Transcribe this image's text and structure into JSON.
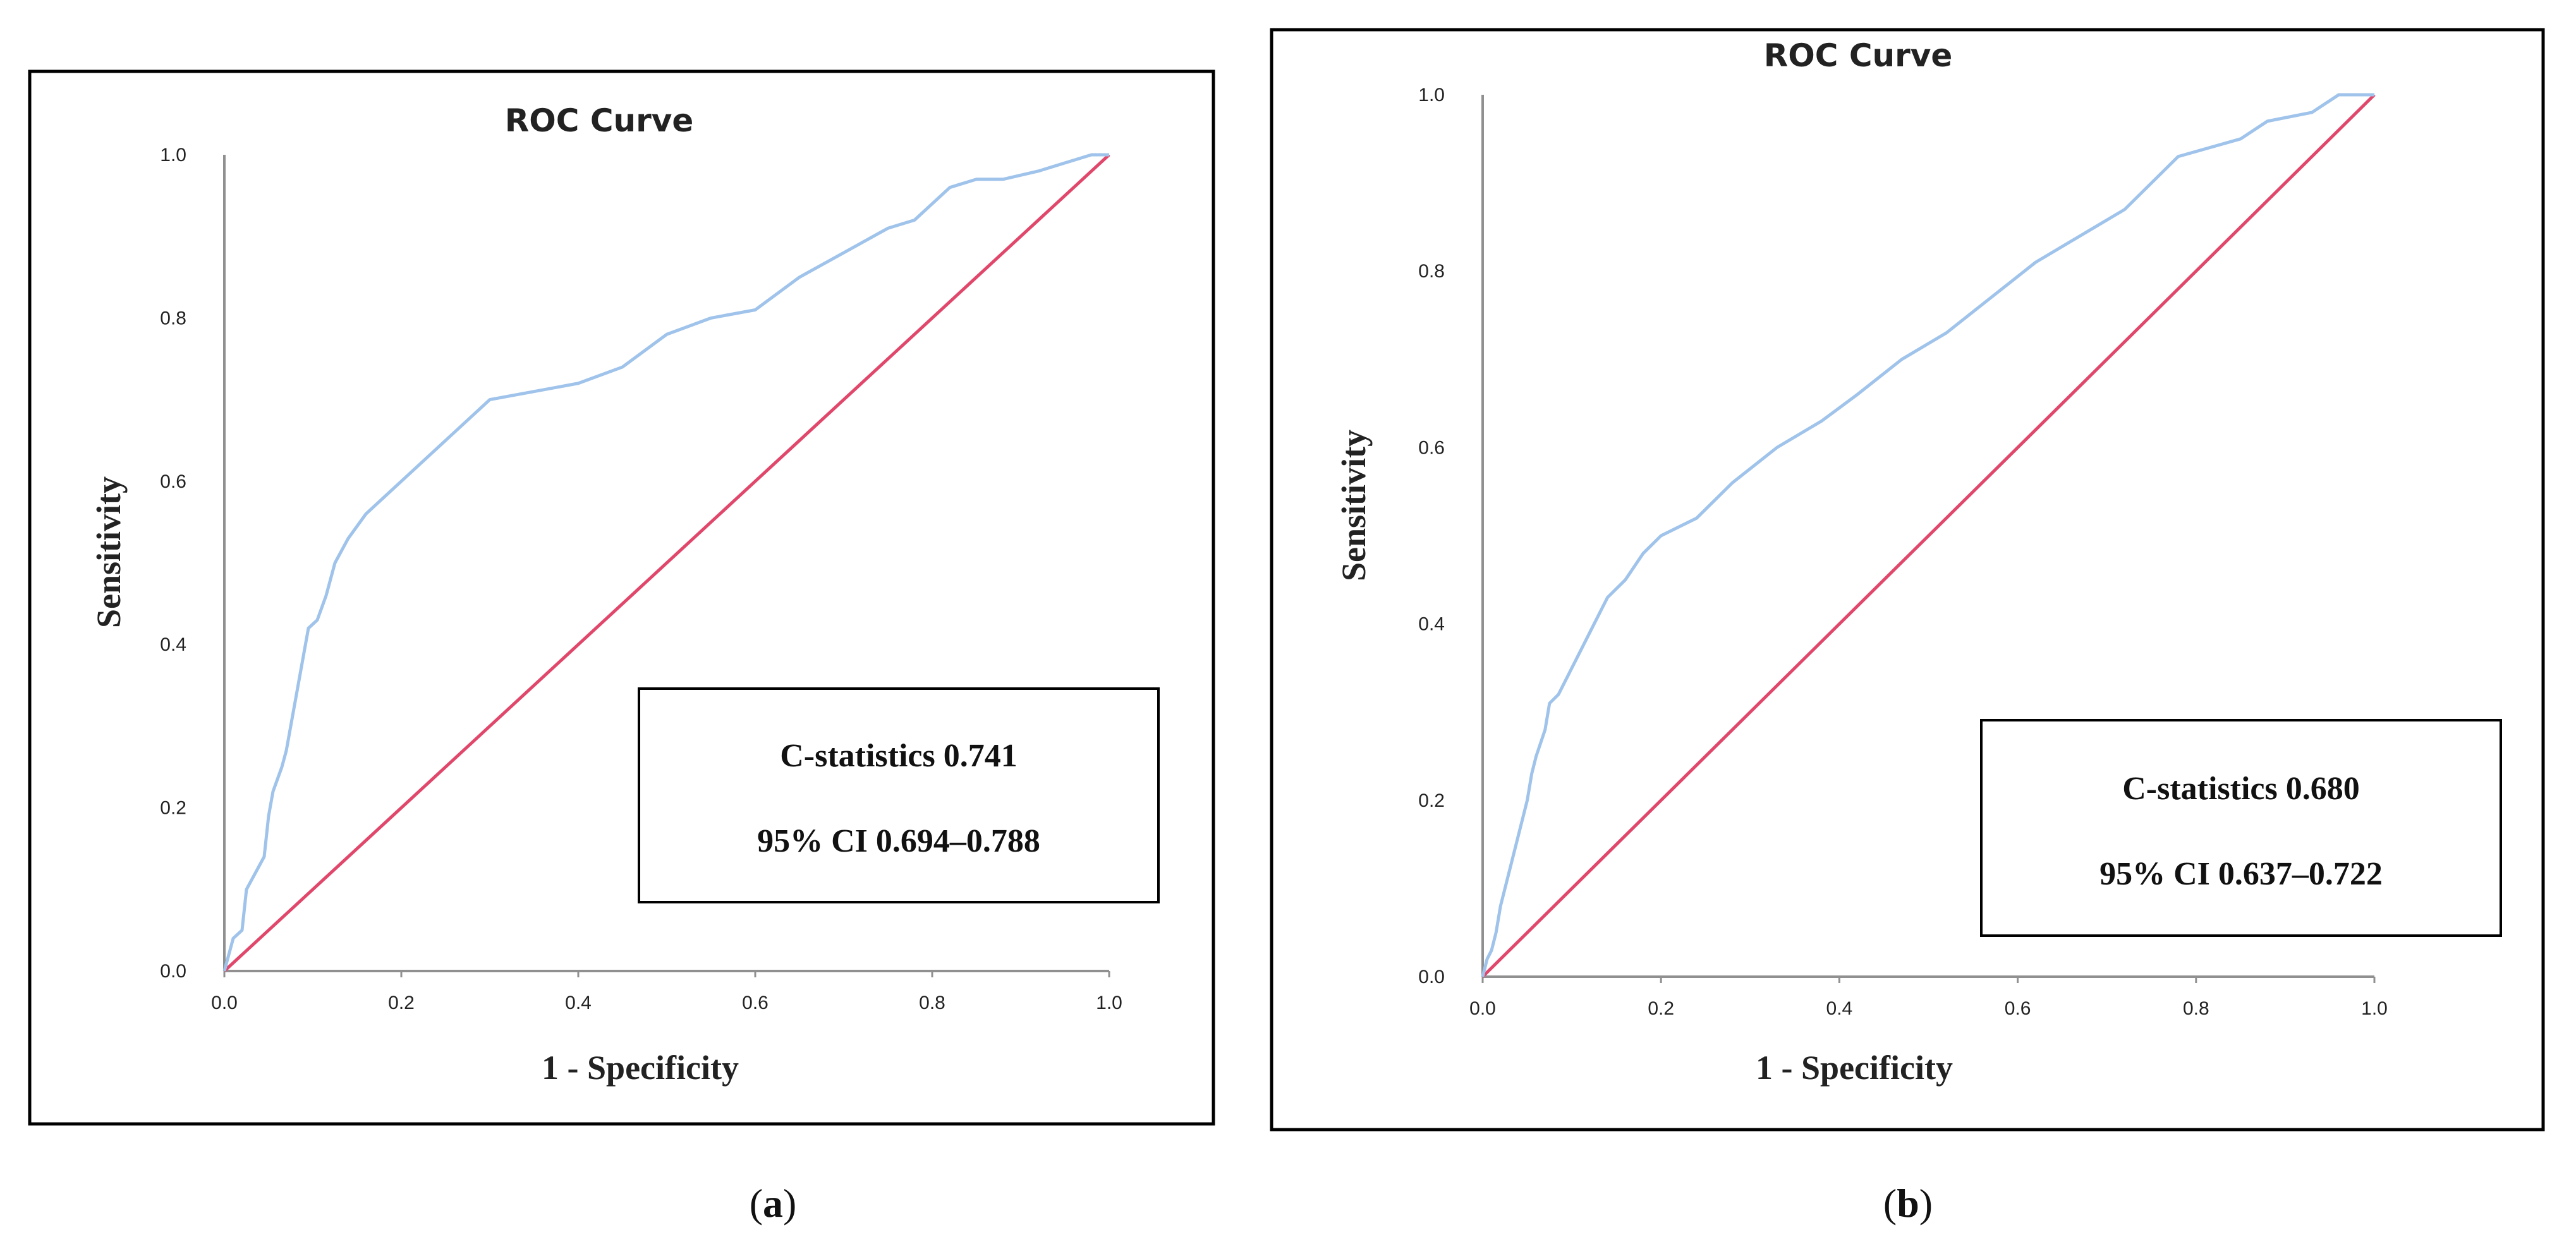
{
  "colors": {
    "curve": "#9fc3ea",
    "reference": "#e0476b",
    "axis": "#909090",
    "frame": "#000000"
  },
  "panels": [
    {
      "caption_open": "(",
      "caption_letter": "a",
      "caption_close": ")",
      "stats_line1": "C-statistics 0.741",
      "stats_line2": "95% CI 0.694–0.788"
    },
    {
      "caption_open": "(",
      "caption_letter": "b",
      "caption_close": ")",
      "stats_line1": "C-statistics 0.680",
      "stats_line2": "95% CI 0.637–0.722"
    }
  ],
  "chart_data": [
    {
      "type": "line",
      "title": "ROC Curve",
      "xlabel": "1 - Specificity",
      "ylabel": "Sensitivity",
      "xlim": [
        0,
        1
      ],
      "ylim": [
        0,
        1
      ],
      "x_ticks": [
        "0.0",
        "0.2",
        "0.4",
        "0.6",
        "0.8",
        "1.0"
      ],
      "y_ticks": [
        "0.0",
        "0.2",
        "0.4",
        "0.6",
        "0.8",
        "1.0"
      ],
      "grid": false,
      "series": [
        {
          "points": [
            [
              0,
              0
            ],
            [
              0.005,
              0.02
            ],
            [
              0.01,
              0.04
            ],
            [
              0.02,
              0.05
            ],
            [
              0.025,
              0.1
            ],
            [
              0.035,
              0.12
            ],
            [
              0.045,
              0.14
            ],
            [
              0.05,
              0.19
            ],
            [
              0.055,
              0.22
            ],
            [
              0.065,
              0.25
            ],
            [
              0.07,
              0.27
            ],
            [
              0.075,
              0.3
            ],
            [
              0.08,
              0.33
            ],
            [
              0.085,
              0.36
            ],
            [
              0.09,
              0.39
            ],
            [
              0.095,
              0.42
            ],
            [
              0.105,
              0.43
            ],
            [
              0.115,
              0.46
            ],
            [
              0.125,
              0.5
            ],
            [
              0.14,
              0.53
            ],
            [
              0.16,
              0.56
            ],
            [
              0.17,
              0.57
            ],
            [
              0.18,
              0.58
            ],
            [
              0.2,
              0.6
            ],
            [
              0.22,
              0.62
            ],
            [
              0.25,
              0.65
            ],
            [
              0.28,
              0.68
            ],
            [
              0.3,
              0.7
            ],
            [
              0.35,
              0.71
            ],
            [
              0.4,
              0.72
            ],
            [
              0.45,
              0.74
            ],
            [
              0.5,
              0.78
            ],
            [
              0.55,
              0.8
            ],
            [
              0.6,
              0.81
            ],
            [
              0.65,
              0.85
            ],
            [
              0.7,
              0.88
            ],
            [
              0.75,
              0.91
            ],
            [
              0.78,
              0.92
            ],
            [
              0.82,
              0.96
            ],
            [
              0.85,
              0.97
            ],
            [
              0.88,
              0.97
            ],
            [
              0.92,
              0.98
            ],
            [
              0.95,
              0.99
            ],
            [
              0.98,
              1.0
            ],
            [
              1.0,
              1.0
            ]
          ]
        },
        {
          "points": [
            [
              0,
              0
            ],
            [
              1,
              1
            ]
          ]
        }
      ]
    },
    {
      "type": "line",
      "title": "ROC Curve",
      "xlabel": "1 - Specificity",
      "ylabel": "Sensitivity",
      "xlim": [
        0,
        1
      ],
      "ylim": [
        0,
        1
      ],
      "x_ticks": [
        "0.0",
        "0.2",
        "0.4",
        "0.6",
        "0.8",
        "1.0"
      ],
      "y_ticks": [
        "0.0",
        "0.2",
        "0.4",
        "0.6",
        "0.8",
        "1.0"
      ],
      "grid": false,
      "series": [
        {
          "points": [
            [
              0,
              0
            ],
            [
              0.005,
              0.02
            ],
            [
              0.01,
              0.03
            ],
            [
              0.015,
              0.05
            ],
            [
              0.02,
              0.08
            ],
            [
              0.025,
              0.1
            ],
            [
              0.03,
              0.12
            ],
            [
              0.035,
              0.14
            ],
            [
              0.04,
              0.16
            ],
            [
              0.045,
              0.18
            ],
            [
              0.05,
              0.2
            ],
            [
              0.055,
              0.23
            ],
            [
              0.06,
              0.25
            ],
            [
              0.07,
              0.28
            ],
            [
              0.075,
              0.31
            ],
            [
              0.085,
              0.32
            ],
            [
              0.1,
              0.35
            ],
            [
              0.12,
              0.39
            ],
            [
              0.14,
              0.43
            ],
            [
              0.16,
              0.45
            ],
            [
              0.18,
              0.48
            ],
            [
              0.2,
              0.5
            ],
            [
              0.24,
              0.52
            ],
            [
              0.28,
              0.56
            ],
            [
              0.33,
              0.6
            ],
            [
              0.38,
              0.63
            ],
            [
              0.42,
              0.66
            ],
            [
              0.47,
              0.7
            ],
            [
              0.52,
              0.73
            ],
            [
              0.57,
              0.77
            ],
            [
              0.62,
              0.81
            ],
            [
              0.67,
              0.84
            ],
            [
              0.72,
              0.87
            ],
            [
              0.78,
              0.93
            ],
            [
              0.85,
              0.95
            ],
            [
              0.88,
              0.97
            ],
            [
              0.93,
              0.98
            ],
            [
              0.96,
              1.0
            ],
            [
              1.0,
              1.0
            ]
          ]
        },
        {
          "points": [
            [
              0,
              0
            ],
            [
              1,
              1
            ]
          ]
        }
      ]
    }
  ]
}
